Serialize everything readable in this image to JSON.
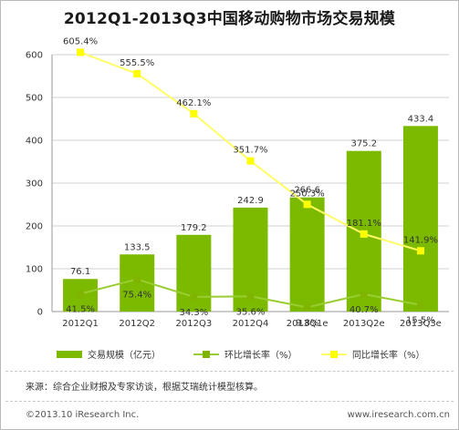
{
  "title": "2012Q1-2013Q3中国移动购物市场交易规模",
  "chart_data": {
    "type": "bar",
    "categories": [
      "2012Q1",
      "2012Q2",
      "2012Q3",
      "2012Q4",
      "2013Q1e",
      "2013Q2e",
      "2013Q3e"
    ],
    "series": [
      {
        "name": "交易规模（亿元）",
        "type": "bar",
        "values": [
          76.1,
          133.5,
          179.2,
          242.9,
          266.6,
          375.2,
          433.4
        ]
      },
      {
        "name": "环比增长率（%）",
        "type": "line",
        "values": [
          41.5,
          75.4,
          34.3,
          35.6,
          9.8,
          40.7,
          15.5
        ],
        "labels": [
          "41.5%",
          "75.4%",
          "34.3%",
          "35.6%",
          "9.8%",
          "40.7%",
          "15.5%"
        ]
      },
      {
        "name": "同比增长率（%）",
        "type": "line",
        "values": [
          605.4,
          555.5,
          462.1,
          351.7,
          250.3,
          181.1,
          141.9
        ],
        "labels": [
          "605.4%",
          "555.5%",
          "462.1%",
          "351.7%",
          "250.3%",
          "181.1%",
          "141.9%"
        ]
      }
    ],
    "yticks": [
      "0",
      "100",
      "200",
      "300",
      "400",
      "500",
      "600"
    ],
    "ylim": [
      0,
      600
    ],
    "grid": true,
    "legend_position": "bottom"
  },
  "colors": {
    "bar": "#7cba00",
    "qoq_line": "#9acd32",
    "qoq_marker": "#7fb500",
    "yoy_line": "#ffff66",
    "yoy_marker": "#ffff00",
    "grid": "#d0d0d0",
    "text": "#333333"
  },
  "source": "来源：综合企业财报及专家访谈，根据艾瑞统计模型核算。",
  "footer": {
    "copyright": "©2013.10 iResearch Inc.",
    "website": "www.iresearch.com.cn"
  }
}
